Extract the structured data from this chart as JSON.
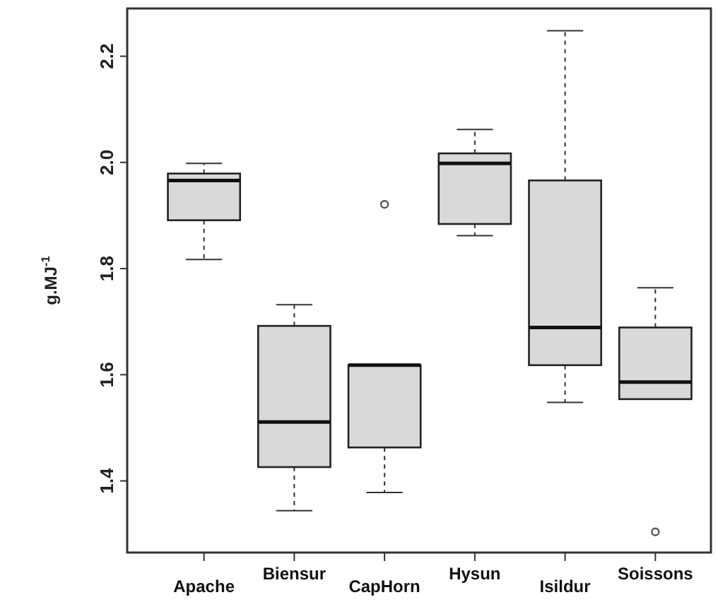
{
  "chart_data": {
    "type": "box",
    "ylabel": "g.MJ$^{-1}$",
    "categories": [
      "Apache",
      "Biensur",
      "CapHorn",
      "Hysun",
      "Isildur",
      "Soissons"
    ],
    "color": "#d9d9d9",
    "ylim": [
      1.265,
      2.29
    ],
    "yticks": [
      {
        "value": 1.4,
        "label": "1.4"
      },
      {
        "value": 1.6,
        "label": "1.6"
      },
      {
        "value": 1.8,
        "label": "1.8"
      },
      {
        "value": 2.0,
        "label": "2.0"
      },
      {
        "value": 2.2,
        "label": "2.2"
      }
    ],
    "grid": false,
    "boxes": [
      {
        "low": 1.817,
        "q1": 1.891,
        "median": 1.966,
        "q3": 1.979,
        "high": 1.998
      },
      {
        "low": 1.344,
        "q1": 1.426,
        "median": 1.511,
        "q3": 1.692,
        "high": 1.732
      },
      {
        "low": 1.378,
        "q1": 1.463,
        "median": 1.618,
        "q3": 1.618,
        "high": 1.618,
        "outliers": [
          1.921
        ]
      },
      {
        "low": 1.862,
        "q1": 1.884,
        "median": 1.998,
        "q3": 2.017,
        "high": 2.062
      },
      {
        "low": 1.548,
        "q1": 1.618,
        "median": 1.689,
        "q3": 1.966,
        "high": 2.248
      },
      {
        "low": 1.554,
        "q1": 1.554,
        "median": 1.586,
        "q3": 1.689,
        "high": 1.764,
        "outliers": [
          1.304
        ]
      }
    ]
  }
}
